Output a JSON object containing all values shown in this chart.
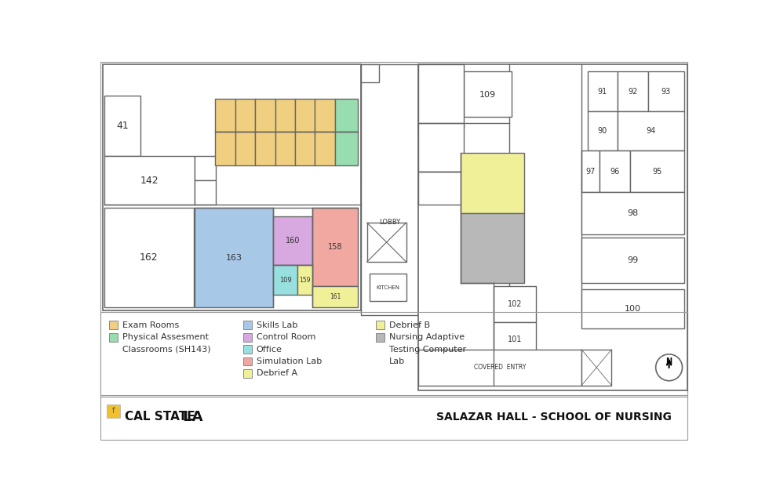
{
  "title": "SALAZAR HALL - SCHOOL OF NURSING",
  "bg": "#ffffff",
  "wall": "#666666",
  "colors": {
    "exam_rooms": "#f0d080",
    "physical_assessment": "#98ddb0",
    "skills_lab": "#a8c8e8",
    "control_room": "#d8a8e0",
    "office": "#98e0e0",
    "simulation_lab": "#f0a8a0",
    "debrief_a": "#f0f098",
    "debrief_b": "#f0f098",
    "nursing_adaptive": "#b8b8b8"
  },
  "legend": [
    {
      "label": "Exam Rooms",
      "color": "#f0d080",
      "col": 0,
      "row": 0
    },
    {
      "label": "Physical Assesment",
      "color": "#98ddb0",
      "col": 0,
      "row": 1
    },
    {
      "label": "Classrooms (SH143)",
      "color": null,
      "col": 0,
      "row": 2
    },
    {
      "label": "Skills Lab",
      "color": "#a8c8e8",
      "col": 1,
      "row": 0
    },
    {
      "label": "Control Room",
      "color": "#d8a8e0",
      "col": 1,
      "row": 1
    },
    {
      "label": "Office",
      "color": "#98e0e0",
      "col": 1,
      "row": 2
    },
    {
      "label": "Simulation Lab",
      "color": "#f0a8a0",
      "col": 1,
      "row": 3
    },
    {
      "label": "Debrief A",
      "color": "#f0f098",
      "col": 1,
      "row": 4
    },
    {
      "label": "Debrief B",
      "color": "#f0f098",
      "col": 2,
      "row": 0
    },
    {
      "label": "Nursing Adaptive",
      "color": "#b8b8b8",
      "col": 2,
      "row": 1
    },
    {
      "label": "Testing Computer",
      "color": null,
      "col": 2,
      "row": 2
    },
    {
      "label": "Lab",
      "color": null,
      "col": 2,
      "row": 3
    }
  ]
}
